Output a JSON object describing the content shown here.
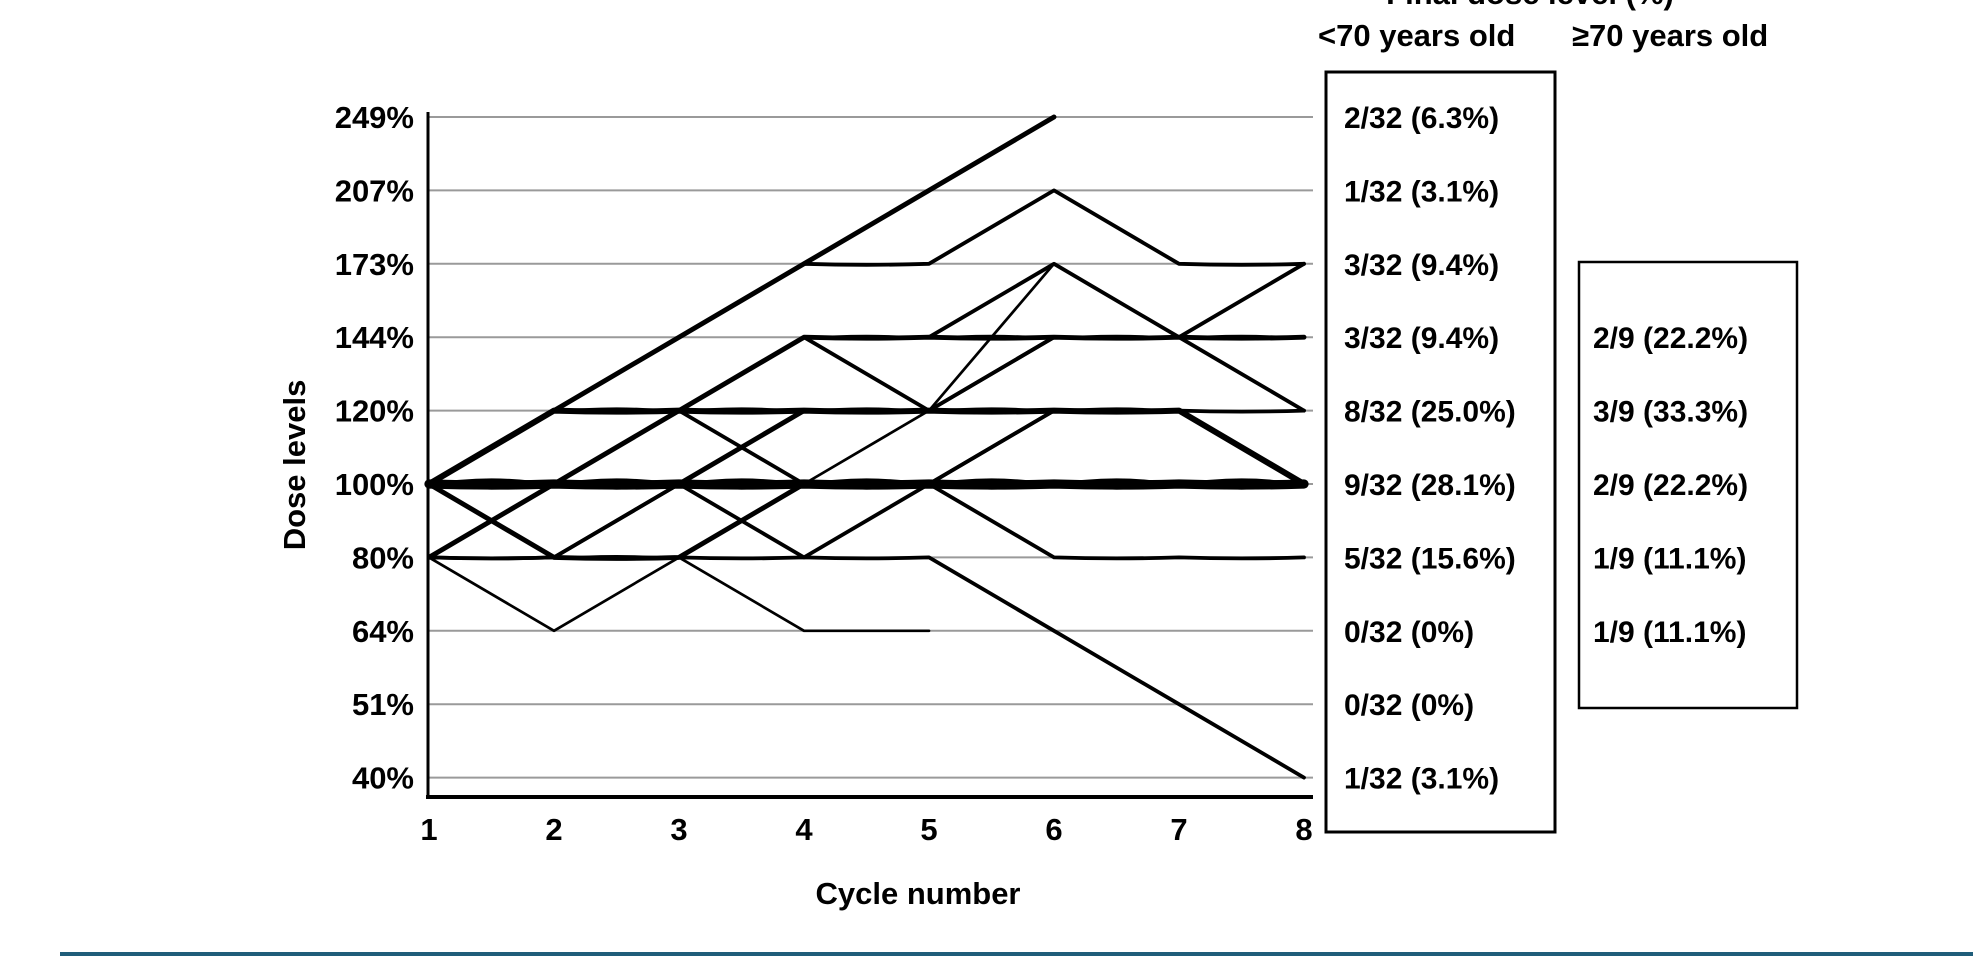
{
  "chart_data": {
    "type": "line",
    "title": "Final dose level (%)",
    "xlabel": "Cycle number",
    "ylabel": "Dose levels",
    "x_ticks": [
      "1",
      "2",
      "3",
      "4",
      "5",
      "6",
      "7",
      "8"
    ],
    "y_ticks": [
      "249%",
      "207%",
      "173%",
      "144%",
      "120%",
      "100%",
      "80%",
      "64%",
      "51%",
      "40%"
    ],
    "grid": "horizontal",
    "groups": [
      {
        "header_before": "<",
        "header": "70 years old",
        "rows": [
          {
            "level": "249%",
            "text": "2/32 (6.3%)"
          },
          {
            "level": "207%",
            "text": "1/32 (3.1%)"
          },
          {
            "level": "173%",
            "text": "3/32 (9.4%)"
          },
          {
            "level": "144%",
            "text": "3/32 (9.4%)"
          },
          {
            "level": "120%",
            "text": "8/32 (25.0%)"
          },
          {
            "level": "100%",
            "text": "9/32 (28.1%)"
          },
          {
            "level": "80%",
            "text": "5/32 (15.6%)"
          },
          {
            "level": "64%",
            "text": "0/32 (0%)"
          },
          {
            "level": "51%",
            "text": "0/32 (0%)"
          },
          {
            "level": "40%",
            "text": "1/32 (3.1%)"
          }
        ]
      },
      {
        "header_before": "≥",
        "header": "70 years old",
        "rows": [
          {
            "level": "144%",
            "text": "2/9 (22.2%)"
          },
          {
            "level": "120%",
            "text": "3/9 (33.3%)"
          },
          {
            "level": "100%",
            "text": "2/9 (22.2%)"
          },
          {
            "level": "80%",
            "text": "1/9 (11.1%)"
          },
          {
            "level": "64%",
            "text": "1/9 (11.1%)"
          }
        ]
      }
    ],
    "trajectories": [
      {
        "path": [
          [
            1,
            "100%"
          ],
          [
            2,
            "120%"
          ],
          [
            3,
            "144%"
          ],
          [
            4,
            "173%"
          ],
          [
            5,
            "207%"
          ],
          [
            6,
            "249%"
          ]
        ],
        "weight": 3
      },
      {
        "path": [
          [
            1,
            "100%"
          ],
          [
            2,
            "120%"
          ],
          [
            3,
            "144%"
          ],
          [
            4,
            "173%"
          ],
          [
            5,
            "173%"
          ],
          [
            6,
            "207%"
          ],
          [
            7,
            "173%"
          ],
          [
            8,
            "173%"
          ]
        ],
        "weight": 2
      },
      {
        "path": [
          [
            1,
            "100%"
          ],
          [
            2,
            "100%"
          ],
          [
            3,
            "120%"
          ],
          [
            4,
            "144%"
          ],
          [
            5,
            "144%"
          ],
          [
            6,
            "173%"
          ],
          [
            7,
            "144%"
          ],
          [
            8,
            "173%"
          ]
        ],
        "weight": 2
      },
      {
        "path": [
          [
            1,
            "100%"
          ],
          [
            2,
            "100%"
          ],
          [
            3,
            "120%"
          ],
          [
            4,
            "144%"
          ],
          [
            5,
            "144%"
          ],
          [
            6,
            "144%"
          ],
          [
            7,
            "144%"
          ],
          [
            8,
            "144%"
          ]
        ],
        "weight": 3
      },
      {
        "path": [
          [
            1,
            "100%"
          ],
          [
            2,
            "120%"
          ],
          [
            3,
            "120%"
          ],
          [
            4,
            "144%"
          ],
          [
            5,
            "120%"
          ],
          [
            6,
            "144%"
          ],
          [
            7,
            "144%"
          ],
          [
            8,
            "120%"
          ]
        ],
        "weight": 2
      },
      {
        "path": [
          [
            1,
            "100%"
          ],
          [
            2,
            "120%"
          ],
          [
            3,
            "120%"
          ],
          [
            4,
            "120%"
          ],
          [
            5,
            "120%"
          ],
          [
            6,
            "120%"
          ],
          [
            7,
            "120%"
          ],
          [
            8,
            "100%"
          ]
        ],
        "weight": 4
      },
      {
        "path": [
          [
            1,
            "100%"
          ],
          [
            2,
            "100%"
          ],
          [
            3,
            "120%"
          ],
          [
            4,
            "100%"
          ],
          [
            5,
            "120%"
          ],
          [
            6,
            "173%"
          ],
          [
            7,
            "144%"
          ],
          [
            8,
            "120%"
          ]
        ],
        "weight": 1
      },
      {
        "path": [
          [
            1,
            "100%"
          ],
          [
            2,
            "100%"
          ],
          [
            3,
            "100%"
          ],
          [
            4,
            "100%"
          ],
          [
            5,
            "100%"
          ],
          [
            6,
            "100%"
          ],
          [
            7,
            "100%"
          ],
          [
            8,
            "100%"
          ]
        ],
        "weight": 7
      },
      {
        "path": [
          [
            1,
            "80%"
          ],
          [
            2,
            "100%"
          ],
          [
            3,
            "100%"
          ],
          [
            4,
            "120%"
          ],
          [
            5,
            "120%"
          ],
          [
            6,
            "120%"
          ],
          [
            7,
            "120%"
          ],
          [
            8,
            "100%"
          ]
        ],
        "weight": 3
      },
      {
        "path": [
          [
            1,
            "80%"
          ],
          [
            2,
            "100%"
          ],
          [
            3,
            "120%"
          ],
          [
            4,
            "100%"
          ],
          [
            5,
            "100%"
          ],
          [
            6,
            "120%"
          ],
          [
            7,
            "120%"
          ],
          [
            8,
            "120%"
          ]
        ],
        "weight": 2
      },
      {
        "path": [
          [
            1,
            "100%"
          ],
          [
            2,
            "80%"
          ],
          [
            3,
            "100%"
          ],
          [
            4,
            "80%"
          ],
          [
            5,
            "100%"
          ],
          [
            6,
            "80%"
          ],
          [
            7,
            "80%"
          ],
          [
            8,
            "80%"
          ]
        ],
        "weight": 2
      },
      {
        "path": [
          [
            1,
            "100%"
          ],
          [
            2,
            "80%"
          ],
          [
            3,
            "80%"
          ],
          [
            4,
            "100%"
          ],
          [
            5,
            "100%"
          ],
          [
            6,
            "100%"
          ],
          [
            7,
            "100%"
          ],
          [
            8,
            "100%"
          ]
        ],
        "weight": 3
      },
      {
        "path": [
          [
            1,
            "80%"
          ],
          [
            2,
            "80%"
          ],
          [
            3,
            "80%"
          ],
          [
            4,
            "80%"
          ],
          [
            5,
            "80%"
          ],
          [
            6,
            "64%"
          ],
          [
            7,
            "51%"
          ],
          [
            8,
            "40%"
          ]
        ],
        "weight": 2
      },
      {
        "path": [
          [
            1,
            "80%"
          ],
          [
            2,
            "64%"
          ],
          [
            3,
            "80%"
          ],
          [
            4,
            "64%"
          ],
          [
            5,
            "64%"
          ]
        ],
        "weight": 1
      },
      {
        "path": [
          [
            1,
            "80%"
          ],
          [
            2,
            "80%"
          ],
          [
            3,
            "100%"
          ],
          [
            4,
            "100%"
          ],
          [
            5,
            "100%"
          ],
          [
            6,
            "120%"
          ],
          [
            7,
            "120%"
          ],
          [
            8,
            "100%"
          ]
        ],
        "weight": 2
      },
      {
        "path": [
          [
            1,
            "100%"
          ],
          [
            2,
            "100%"
          ],
          [
            3,
            "100%"
          ],
          [
            4,
            "120%"
          ],
          [
            5,
            "120%"
          ],
          [
            6,
            "144%"
          ],
          [
            7,
            "144%"
          ],
          [
            8,
            "144%"
          ]
        ],
        "weight": 2
      }
    ]
  }
}
